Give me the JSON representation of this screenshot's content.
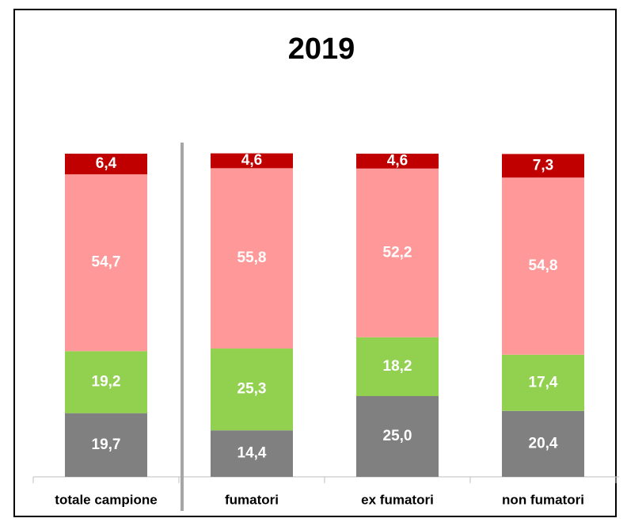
{
  "chart_data": {
    "type": "stacked_bar",
    "title": "2019",
    "categories": [
      "totale campione",
      "fumatori",
      "ex fumatori",
      "non fumatori"
    ],
    "ylim": [
      0,
      100
    ],
    "series": [
      {
        "color": "#808080",
        "values": [
          19.7,
          14.4,
          25.0,
          20.4
        ],
        "value_labels": [
          "19,7",
          "14,4",
          "25,0",
          "20,4"
        ]
      },
      {
        "color": "#92d050",
        "values": [
          19.2,
          25.3,
          18.2,
          17.4
        ],
        "value_labels": [
          "19,2",
          "25,3",
          "18,2",
          "17,4"
        ]
      },
      {
        "color": "#ff9999",
        "values": [
          54.7,
          55.8,
          52.2,
          54.8
        ],
        "value_labels": [
          "54,7",
          "55,8",
          "52,2",
          "54,8"
        ]
      },
      {
        "color": "#c00000",
        "values": [
          6.4,
          4.6,
          4.6,
          7.3
        ],
        "value_labels": [
          "6,4",
          "4,6",
          "4,6",
          "7,3"
        ]
      }
    ]
  }
}
